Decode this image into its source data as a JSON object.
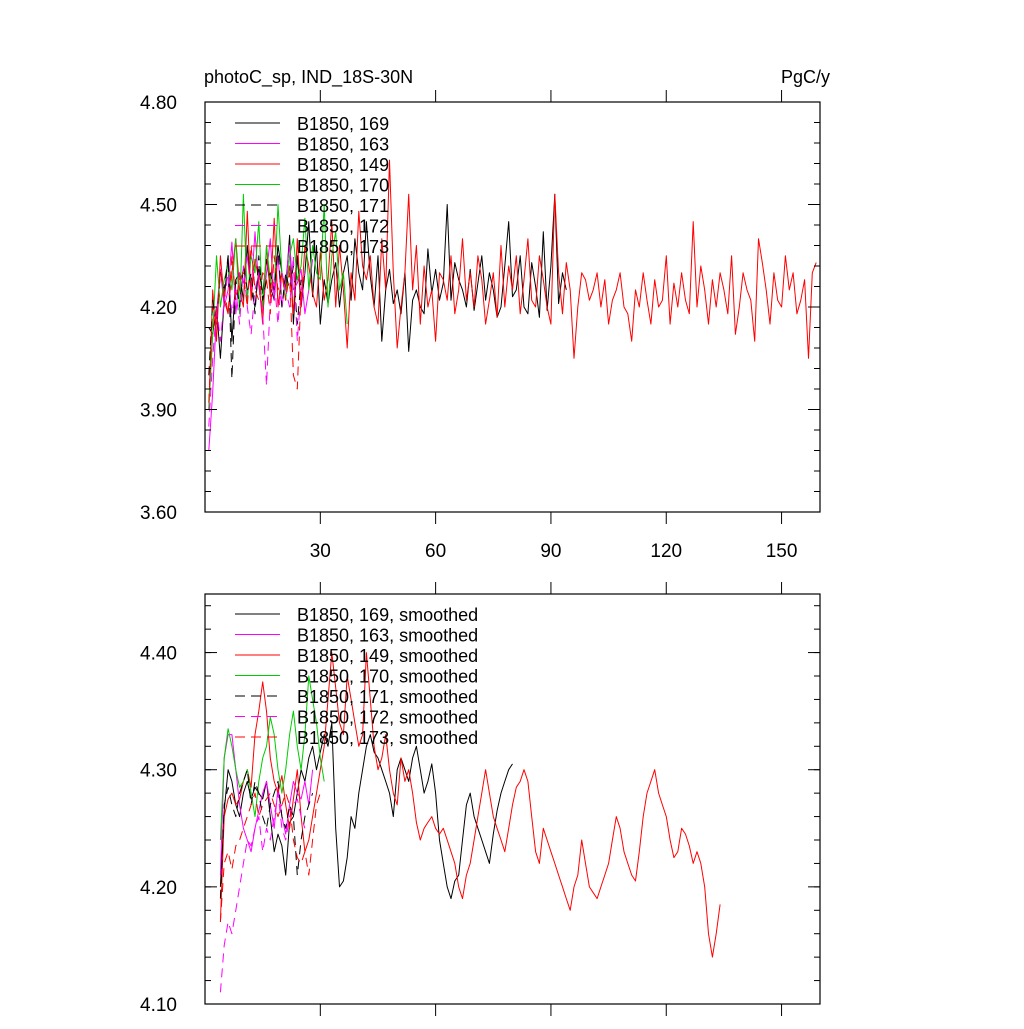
{
  "figure": {
    "title_left": "photoC_sp, IND_18S-30N",
    "title_right": "PgC/y"
  },
  "colors": {
    "black": "#000000",
    "magenta": "#ff00ff",
    "red": "#ff0000",
    "green": "#00cc00"
  },
  "chart_data": [
    {
      "type": "line",
      "title": "photoC_sp, IND_18S-30N",
      "units": "PgC/y",
      "xlim": [
        0,
        160
      ],
      "ylim": [
        3.6,
        4.8
      ],
      "x_ticks": [
        30,
        60,
        90,
        120,
        150
      ],
      "y_ticks": [
        "3.60",
        "3.90",
        "4.20",
        "4.50",
        "4.80"
      ],
      "y_tick_values": [
        3.6,
        3.9,
        4.2,
        4.5,
        4.8
      ],
      "legend": [
        "B1850, 169",
        "B1850, 163",
        "B1850, 149",
        "B1850, 170",
        "B1850, 171",
        "B1850, 172",
        "B1850, 173"
      ],
      "legend_position": "top-left",
      "series": [
        {
          "name": "B1850, 169",
          "color": "black",
          "dash": "solid",
          "x_start": 1,
          "values": [
            4.14,
            4.12,
            4.2,
            4.05,
            4.22,
            4.35,
            4.1,
            4.28,
            4.3,
            4.22,
            4.38,
            4.25,
            4.2,
            4.31,
            4.24,
            4.34,
            4.26,
            4.22,
            4.38,
            4.3,
            4.25,
            4.41,
            4.15,
            4.35,
            4.2,
            4.3,
            4.45,
            4.23,
            4.38,
            4.15,
            4.28,
            4.21,
            4.28,
            4.33,
            4.2,
            4.3,
            4.35,
            4.22,
            4.4,
            4.3,
            4.25,
            4.45,
            4.29,
            4.2,
            4.35,
            4.1,
            4.25,
            4.31,
            4.21,
            4.25,
            4.18,
            4.3,
            4.07,
            4.22,
            4.25,
            4.2,
            4.18,
            4.37,
            4.24,
            4.31,
            4.22,
            4.27,
            4.5,
            4.22,
            4.33,
            4.28,
            4.25,
            4.2,
            4.31,
            4.19,
            4.27,
            4.35,
            4.22,
            4.3,
            4.25,
            4.17,
            4.2,
            4.32,
            4.45,
            4.23,
            4.25,
            4.35,
            4.2,
            4.18,
            4.33,
            4.26,
            4.17,
            4.42,
            4.19,
            4.32,
            4.53,
            4.21,
            4.3,
            4.25
          ]
        },
        {
          "name": "B1850, 163",
          "color": "magenta",
          "dash": "solid",
          "x_start": 1,
          "values": [
            3.78,
            3.95,
            4.18,
            4.31,
            4.2,
            4.25,
            4.39,
            4.18,
            4.3,
            4.27,
            4.35,
            4.24,
            4.42,
            4.26,
            4.18,
            4.3,
            4.4,
            4.22,
            4.35,
            4.2,
            4.28,
            4.38,
            4.25,
            4.27,
            4.31,
            4.18,
            4.25,
            4.34
          ]
        },
        {
          "name": "B1850, 149",
          "color": "red",
          "dash": "solid",
          "x_start": 1,
          "values": [
            3.9,
            4.25,
            4.1,
            4.35,
            4.22,
            4.18,
            4.3,
            4.4,
            4.25,
            4.2,
            4.48,
            4.22,
            4.34,
            4.28,
            4.15,
            4.38,
            4.23,
            4.46,
            4.2,
            4.3,
            4.25,
            4.32,
            4.18,
            4.4,
            4.2,
            4.38,
            4.32,
            4.24,
            4.2,
            4.36,
            4.22,
            4.28,
            4.45,
            4.2,
            4.38,
            4.25,
            4.08,
            4.3,
            4.22,
            4.48,
            4.32,
            4.28,
            4.35,
            4.2,
            4.15,
            4.4,
            4.25,
            4.63,
            4.3,
            4.08,
            4.2,
            4.3,
            4.53,
            4.25,
            4.38,
            4.15,
            4.32,
            4.2,
            4.25,
            4.1,
            4.3,
            4.28,
            4.22,
            4.35,
            4.18,
            4.25,
            4.4,
            4.22,
            4.3,
            4.2,
            4.35,
            4.28,
            4.15,
            4.22,
            4.3,
            4.17,
            4.38,
            4.2,
            4.32,
            4.25,
            4.35,
            4.18,
            4.28,
            4.4,
            4.22,
            4.2,
            4.35,
            4.28,
            4.2,
            4.15,
            4.53,
            4.3,
            4.18,
            4.33,
            4.25,
            4.05,
            4.2,
            4.3,
            4.28,
            4.22,
            4.25,
            4.3,
            4.2,
            4.28,
            4.15,
            4.22,
            4.25,
            4.3,
            4.2,
            4.18,
            4.1,
            4.25,
            4.2,
            4.3,
            4.22,
            4.15,
            4.28,
            4.2,
            4.22,
            4.35,
            4.15,
            4.27,
            4.2,
            4.3,
            4.22,
            4.18,
            4.45,
            4.2,
            4.32,
            4.25,
            4.15,
            4.28,
            4.2,
            4.3,
            4.25,
            4.18,
            4.35,
            4.12,
            4.2,
            4.3,
            4.25,
            4.22,
            4.1,
            4.4,
            4.33,
            4.25,
            4.15,
            4.3,
            4.22,
            4.2,
            4.35,
            4.25,
            4.3,
            4.18,
            4.22,
            4.28,
            4.05,
            4.3,
            4.33
          ]
        },
        {
          "name": "B1850, 170",
          "color": "green",
          "dash": "solid",
          "x_start": 1,
          "values": [
            3.9,
            4.12,
            4.35,
            4.2,
            4.28,
            4.32,
            4.25,
            4.4,
            4.18,
            4.53,
            4.22,
            4.35,
            4.3,
            4.45,
            4.2,
            4.38,
            4.28,
            4.25,
            4.5,
            4.3,
            4.22,
            4.35,
            4.4,
            4.28,
            4.32,
            4.46,
            4.25,
            4.38,
            4.3,
            4.28,
            4.5,
            4.2,
            4.35,
            4.42,
            4.25,
            4.3,
            4.15
          ]
        },
        {
          "name": "B1850, 171",
          "color": "black",
          "dash": "dashed",
          "x_start": 1,
          "values": [
            4.0,
            4.22,
            4.15,
            4.3,
            4.25,
            4.35,
            3.99,
            4.28,
            4.2,
            4.32,
            4.25,
            4.3,
            4.18,
            4.35,
            4.22,
            4.28,
            4.3,
            4.25,
            4.38,
            4.2,
            4.3,
            4.25,
            4.32,
            4.15,
            4.28
          ]
        },
        {
          "name": "B1850, 172",
          "color": "magenta",
          "dash": "dashed",
          "x_start": 1,
          "values": [
            3.85,
            4.05,
            4.2,
            4.1,
            4.22,
            4.3,
            4.18,
            4.25,
            4.15,
            4.32,
            4.2,
            4.12,
            4.25,
            4.3,
            4.18,
            3.97,
            4.22,
            4.28,
            4.15,
            4.3,
            4.25,
            4.2,
            4.35,
            4.1,
            4.25,
            4.3
          ]
        },
        {
          "name": "B1850, 173",
          "color": "red",
          "dash": "dashed",
          "x_start": 1,
          "values": [
            3.92,
            4.2,
            4.15,
            4.3,
            4.25,
            4.18,
            4.35,
            4.22,
            4.28,
            4.3,
            4.2,
            4.38,
            4.25,
            4.22,
            4.3,
            4.28,
            4.18,
            4.35,
            4.25,
            4.3,
            4.22,
            4.3,
            4.0,
            3.96,
            4.25,
            4.3
          ]
        }
      ]
    },
    {
      "type": "line",
      "xlim": [
        0,
        160
      ],
      "ylim": [
        4.1,
        4.45
      ],
      "x_ticks": [
        30,
        60,
        90,
        120,
        150
      ],
      "y_ticks": [
        "4.10",
        "4.20",
        "4.30",
        "4.40"
      ],
      "y_tick_values": [
        4.1,
        4.2,
        4.3,
        4.4
      ],
      "legend": [
        "B1850, 169, smoothed",
        "B1850, 163, smoothed",
        "B1850, 149, smoothed",
        "B1850, 170, smoothed",
        "B1850, 171, smoothed",
        "B1850, 172, smoothed",
        "B1850, 173, smoothed"
      ],
      "legend_position": "top-left",
      "series": [
        {
          "name": "B1850, 169, smoothed",
          "color": "black",
          "dash": "solid",
          "x_start": 4,
          "values": [
            4.2,
            4.265,
            4.3,
            4.29,
            4.27,
            4.26,
            4.28,
            4.29,
            4.275,
            4.285,
            4.28,
            4.275,
            4.29,
            4.26,
            4.23,
            4.245,
            4.235,
            4.21,
            4.255,
            4.26,
            4.28,
            4.3,
            4.29,
            4.31,
            4.32,
            4.3,
            4.315,
            4.33,
            4.32,
            4.34,
            4.25,
            4.2,
            4.205,
            4.225,
            4.26,
            4.25,
            4.28,
            4.3,
            4.32,
            4.33,
            4.315,
            4.31,
            4.3,
            4.29,
            4.28,
            4.26,
            4.3,
            4.31,
            4.3,
            4.29,
            4.31,
            4.32,
            4.3,
            4.28,
            4.29,
            4.305,
            4.28,
            4.24,
            4.22,
            4.2,
            4.19,
            4.205,
            4.21,
            4.24,
            4.27,
            4.28,
            4.26,
            4.25,
            4.24,
            4.23,
            4.22,
            4.245,
            4.265,
            4.28,
            4.29,
            4.3,
            4.305
          ]
        },
        {
          "name": "B1850, 163, smoothed",
          "color": "magenta",
          "dash": "solid",
          "x_start": 4,
          "values": [
            4.21,
            4.31,
            4.33,
            4.33,
            4.3,
            4.27,
            4.25,
            4.24,
            4.23,
            4.25,
            4.265,
            4.28,
            4.29,
            4.27,
            4.25,
            4.285,
            4.26,
            4.245,
            4.27,
            4.29,
            4.28,
            4.275,
            4.29,
            4.27,
            4.3
          ]
        },
        {
          "name": "B1850, 149, smoothed",
          "color": "red",
          "dash": "solid",
          "x_start": 4,
          "values": [
            4.17,
            4.26,
            4.275,
            4.28,
            4.27,
            4.275,
            4.29,
            4.3,
            4.285,
            4.33,
            4.35,
            4.375,
            4.35,
            4.31,
            4.29,
            4.28,
            4.295,
            4.27,
            4.25,
            4.275,
            4.3,
            4.26,
            4.23,
            4.24,
            4.26,
            4.28,
            4.3,
            4.32,
            4.36,
            4.4,
            4.37,
            4.34,
            4.33,
            4.38,
            4.36,
            4.34,
            4.32,
            4.33,
            4.4,
            4.36,
            4.32,
            4.3,
            4.31,
            4.33,
            4.3,
            4.28,
            4.27,
            4.31,
            4.29,
            4.3,
            4.28,
            4.255,
            4.24,
            4.25,
            4.255,
            4.26,
            4.25,
            4.245,
            4.25,
            4.24,
            4.23,
            4.22,
            4.2,
            4.19,
            4.21,
            4.22,
            4.24,
            4.26,
            4.28,
            4.3,
            4.28,
            4.26,
            4.25,
            4.24,
            4.23,
            4.25,
            4.27,
            4.285,
            4.29,
            4.3,
            4.29,
            4.26,
            4.23,
            4.22,
            4.25,
            4.24,
            4.23,
            4.22,
            4.21,
            4.2,
            4.19,
            4.18,
            4.2,
            4.21,
            4.24,
            4.22,
            4.2,
            4.195,
            4.19,
            4.2,
            4.21,
            4.22,
            4.24,
            4.26,
            4.25,
            4.23,
            4.22,
            4.21,
            4.205,
            4.23,
            4.26,
            4.28,
            4.29,
            4.3,
            4.28,
            4.27,
            4.26,
            4.24,
            4.225,
            4.23,
            4.25,
            4.245,
            4.235,
            4.22,
            4.23,
            4.22,
            4.2,
            4.16,
            4.14,
            4.16,
            4.185
          ]
        },
        {
          "name": "B1850, 170, smoothed",
          "color": "green",
          "dash": "solid",
          "x_start": 4,
          "values": [
            4.24,
            4.31,
            4.335,
            4.32,
            4.3,
            4.285,
            4.29,
            4.3,
            4.28,
            4.26,
            4.29,
            4.31,
            4.32,
            4.345,
            4.33,
            4.3,
            4.28,
            4.3,
            4.33,
            4.35,
            4.32,
            4.3,
            4.33,
            4.38,
            4.36,
            4.34,
            4.31,
            4.29
          ]
        },
        {
          "name": "B1850, 171, smoothed",
          "color": "black",
          "dash": "dashed",
          "x_start": 4,
          "values": [
            4.19,
            4.27,
            4.285,
            4.27,
            4.26,
            4.28,
            4.29,
            4.3,
            4.27,
            4.29,
            4.28,
            4.26,
            4.25,
            4.27,
            4.28,
            4.29,
            4.26,
            4.25,
            4.27,
            4.26,
            4.21,
            4.24,
            4.26,
            4.27,
            4.28
          ]
        },
        {
          "name": "B1850, 172, smoothed",
          "color": "magenta",
          "dash": "dashed",
          "x_start": 4,
          "values": [
            4.11,
            4.15,
            4.17,
            4.16,
            4.18,
            4.2,
            4.22,
            4.24,
            4.235,
            4.25,
            4.26,
            4.23,
            4.25,
            4.24,
            4.26,
            4.28,
            4.25,
            4.24,
            4.26,
            4.27,
            4.275,
            4.26,
            4.25
          ]
        },
        {
          "name": "B1850, 173, smoothed",
          "color": "red",
          "dash": "dashed",
          "x_start": 4,
          "values": [
            4.17,
            4.22,
            4.23,
            4.215,
            4.235,
            4.24,
            4.25,
            4.26,
            4.27,
            4.28,
            4.26,
            4.27,
            4.275,
            4.28,
            4.27,
            4.26,
            4.27,
            4.28,
            4.27,
            4.24,
            4.225,
            4.22,
            4.23,
            4.21,
            4.24,
            4.27,
            4.28
          ]
        }
      ]
    }
  ]
}
